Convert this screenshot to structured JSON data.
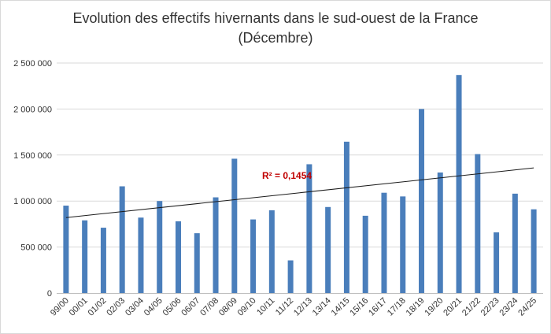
{
  "chart_data": {
    "type": "bar",
    "title_line1": "Evolution des effectifs hivernants dans le sud-ouest de la France",
    "title_line2": "(Décembre)",
    "xlabel": "",
    "ylabel": "",
    "ylim": [
      0,
      2500000
    ],
    "yticks": [
      0,
      500000,
      1000000,
      1500000,
      2000000,
      2500000
    ],
    "ytick_labels": [
      "0",
      "500 000",
      "1 000 000",
      "1 500 000",
      "2 000 000",
      "2 500 000"
    ],
    "grid": true,
    "legend": "none",
    "categories": [
      "99/00",
      "00/01",
      "01/02",
      "02/03",
      "03/04",
      "04/05",
      "05/06",
      "06/07",
      "07/08",
      "08/09",
      "09/10",
      "10/11",
      "11/12",
      "12/13",
      "13/14",
      "14/15",
      "15/16",
      "16/17",
      "17/18",
      "18/19",
      "19/20",
      "20/21",
      "21/22",
      "22/23",
      "23/24",
      "24/25"
    ],
    "series": [
      {
        "name": "Effectifs hivernants",
        "values": [
          950000,
          790000,
          710000,
          1160000,
          820000,
          1000000,
          780000,
          650000,
          1040000,
          1460000,
          800000,
          900000,
          355000,
          1400000,
          935000,
          1645000,
          840000,
          1090000,
          1050000,
          2000000,
          1310000,
          2370000,
          1510000,
          660000,
          1080000,
          910000
        ]
      }
    ],
    "trendline": {
      "type": "linear",
      "start": 820000,
      "end": 1360000,
      "label": "R² = 0,1454"
    },
    "colors": {
      "bar": "#4a7ebb",
      "trendline": "#1a1a1a",
      "r2_label": "#c00000",
      "grid": "#d9d9d9",
      "axis": "#bfbfbf",
      "text": "#333333"
    }
  }
}
